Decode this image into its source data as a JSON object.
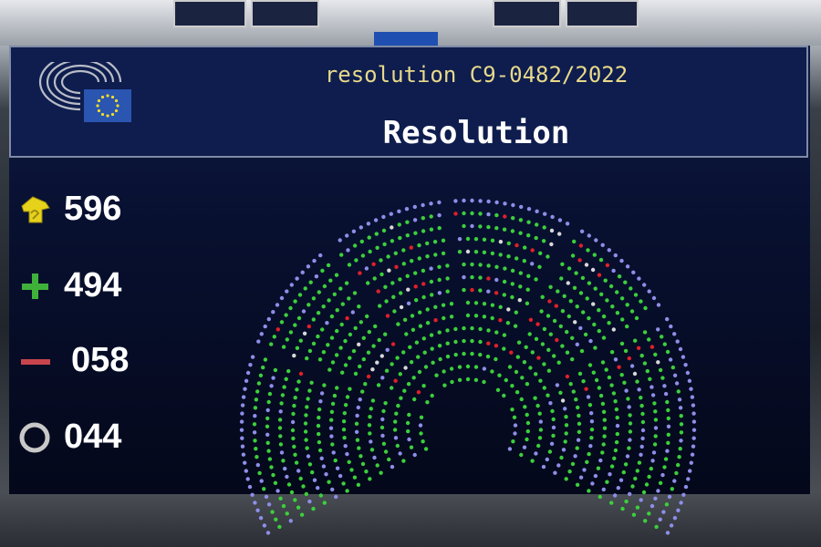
{
  "header": {
    "reference": "resolution C9-0482/2022",
    "title": "Resolution"
  },
  "results": [
    {
      "icon": "hand-raised-icon",
      "value": "596",
      "color": "#e6d21a"
    },
    {
      "icon": "plus-icon",
      "value": "494",
      "color": "#3fb13a"
    },
    {
      "icon": "minus-icon",
      "value": "058",
      "color": "#c8454d"
    },
    {
      "icon": "circle-icon",
      "value": "044",
      "color": "#c8c8c8"
    }
  ],
  "seat_colors": {
    "for": "#3ccf3c",
    "against": "#e0202a",
    "abstain": "#d8d8d8",
    "absent": "#8e8ee8"
  }
}
